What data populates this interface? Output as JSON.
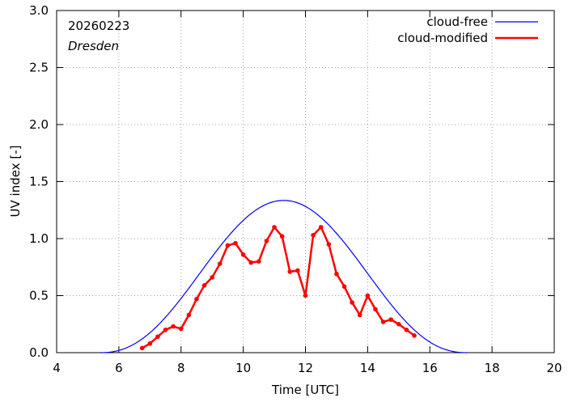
{
  "chart_data": {
    "type": "line",
    "date": "20260223",
    "location": "Dresden",
    "xlabel": "Time  [UTC]",
    "ylabel": "UV index  [-]",
    "xlim": [
      4,
      20
    ],
    "ylim": [
      0,
      3.0
    ],
    "x_ticks": [
      4,
      6,
      8,
      10,
      12,
      14,
      16,
      18,
      20
    ],
    "y_ticks": [
      0.0,
      0.5,
      1.0,
      1.5,
      2.0,
      2.5,
      3.0
    ],
    "x_tick_labels": [
      "4",
      "6",
      "8",
      "10",
      "12",
      "14",
      "16",
      "18",
      "20"
    ],
    "y_tick_labels": [
      "0.0",
      "0.5",
      "1.0",
      "1.5",
      "2.0",
      "2.5",
      "3.0"
    ],
    "grid": true,
    "legend_position": "top-right",
    "series": [
      {
        "name": "cloud-free",
        "color": "#0000ff",
        "marker": "none",
        "model": {
          "peak_time": 11.3,
          "peak_value": 1.335,
          "start": 5.4,
          "end": 17.2
        }
      },
      {
        "name": "cloud-modified",
        "color": "#ff0000",
        "marker": "dot",
        "x": [
          6.75,
          7.0,
          7.25,
          7.5,
          7.75,
          8.0,
          8.25,
          8.5,
          8.75,
          9.0,
          9.25,
          9.5,
          9.75,
          10.0,
          10.25,
          10.5,
          10.75,
          11.0,
          11.25,
          11.5,
          11.75,
          12.0,
          12.25,
          12.5,
          12.75,
          13.0,
          13.25,
          13.5,
          13.75,
          14.0,
          14.25,
          14.5,
          14.75,
          15.0,
          15.25,
          15.5
        ],
        "y": [
          0.04,
          0.08,
          0.14,
          0.2,
          0.23,
          0.21,
          0.33,
          0.47,
          0.59,
          0.66,
          0.78,
          0.94,
          0.96,
          0.86,
          0.79,
          0.8,
          0.98,
          1.1,
          1.02,
          0.71,
          0.72,
          0.5,
          1.03,
          1.1,
          0.95,
          0.69,
          0.58,
          0.44,
          0.33,
          0.5,
          0.38,
          0.27,
          0.29,
          0.25,
          0.2,
          0.15
        ]
      }
    ]
  }
}
